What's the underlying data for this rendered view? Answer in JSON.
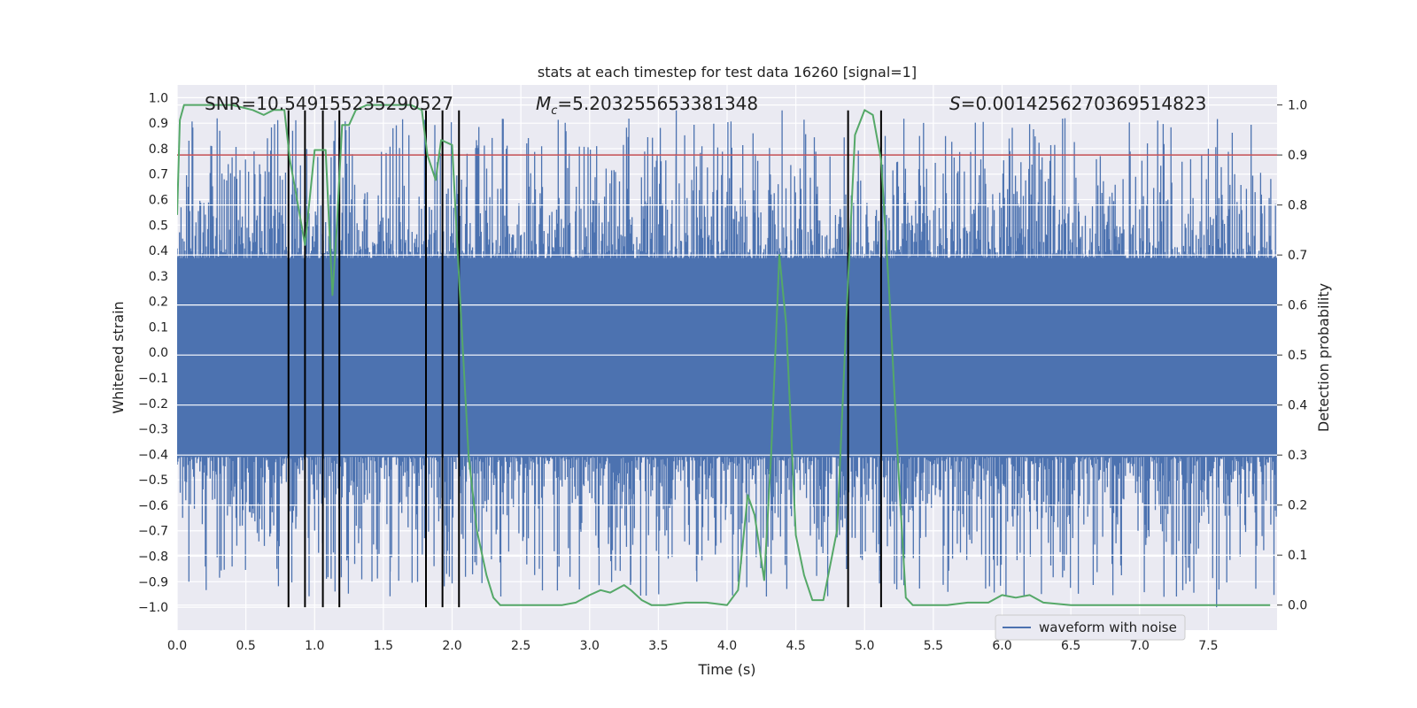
{
  "chart_data": {
    "type": "line",
    "title": "stats at each timestep for test data 16260 [signal=1]",
    "xlabel": "Time (s)",
    "ylabel": "Whitened strain",
    "y2label": "Detection probability",
    "xlim": [
      0.0,
      8.0
    ],
    "ylim": [
      -1.09,
      1.05
    ],
    "y2lim": [
      -0.05,
      1.04
    ],
    "grid": true,
    "x_ticks": [
      "0.0",
      "0.5",
      "1.0",
      "1.5",
      "2.0",
      "2.5",
      "3.0",
      "3.5",
      "4.0",
      "4.5",
      "5.0",
      "5.5",
      "6.0",
      "6.5",
      "7.0",
      "7.5"
    ],
    "y_ticks": [
      "1.0",
      "0.9",
      "0.8",
      "0.7",
      "0.6",
      "0.5",
      "0.4",
      "0.3",
      "0.2",
      "0.1",
      "0.0",
      "−0.1",
      "−0.2",
      "−0.3",
      "−0.4",
      "−0.5",
      "−0.6",
      "−0.7",
      "−0.8",
      "−0.9",
      "−1.0"
    ],
    "y2_ticks": [
      "1.0",
      "0.9",
      "0.8",
      "0.7",
      "0.6",
      "0.5",
      "0.4",
      "0.3",
      "0.2",
      "0.1",
      "0.0"
    ],
    "annotations": {
      "snr": "SNR=10.549155235290527",
      "mc_symbol": "M",
      "mc_sub": "c",
      "mc_value": "=5.203255653381348",
      "s_symbol": "S",
      "s_value": "=0.0014256270369514823"
    },
    "series": [
      {
        "name": "waveform with noise",
        "axis": "left",
        "color": "#4c72b0",
        "description": "dense whitened strain noise, core band about -0.41 to 0.37, spikes up to about 0.95 and down to -1.0",
        "envelope_core": [
          -0.41,
          0.37
        ],
        "spikes": [
          {
            "x": 0.31,
            "y": 0.87
          },
          {
            "x": 0.73,
            "y": -0.74
          },
          {
            "x": 1.14,
            "y": 0.83
          },
          {
            "x": 1.57,
            "y": 0.88
          },
          {
            "x": 1.55,
            "y": -0.86
          },
          {
            "x": 1.98,
            "y": -0.88
          },
          {
            "x": 3.3,
            "y": -0.9
          },
          {
            "x": 3.63,
            "y": 0.95
          },
          {
            "x": 3.78,
            "y": -0.9
          },
          {
            "x": 4.08,
            "y": -0.9
          },
          {
            "x": 4.4,
            "y": 0.95
          },
          {
            "x": 5.15,
            "y": 0.85
          },
          {
            "x": 5.4,
            "y": 0.85
          },
          {
            "x": 5.78,
            "y": -0.75
          },
          {
            "x": 6.2,
            "y": 0.84
          },
          {
            "x": 6.8,
            "y": -0.83
          },
          {
            "x": 7.5,
            "y": 0.8
          },
          {
            "x": 7.56,
            "y": -1.0
          }
        ]
      },
      {
        "name": "detection probability",
        "axis": "right",
        "color": "#55a868",
        "x": [
          0.0,
          0.02,
          0.05,
          0.1,
          0.2,
          0.4,
          0.55,
          0.63,
          0.7,
          0.78,
          0.82,
          0.86,
          0.93,
          1.0,
          1.08,
          1.13,
          1.16,
          1.2,
          1.25,
          1.3,
          1.38,
          1.45,
          1.5,
          1.58,
          1.7,
          1.78,
          1.82,
          1.88,
          1.92,
          2.0,
          2.07,
          2.12,
          2.18,
          2.25,
          2.3,
          2.35,
          2.42,
          2.5,
          2.6,
          2.7,
          2.8,
          2.9,
          3.0,
          3.08,
          3.15,
          3.25,
          3.3,
          3.38,
          3.45,
          3.55,
          3.7,
          3.85,
          4.0,
          4.08,
          4.15,
          4.2,
          4.27,
          4.32,
          4.38,
          4.43,
          4.5,
          4.56,
          4.62,
          4.7,
          4.8,
          4.88,
          4.93,
          5.0,
          5.06,
          5.12,
          5.18,
          5.25,
          5.3,
          5.35,
          5.45,
          5.6,
          5.75,
          5.9,
          6.0,
          6.1,
          6.2,
          6.3,
          6.5,
          6.8,
          7.2,
          7.6,
          7.95
        ],
        "values": [
          0.78,
          0.97,
          1.0,
          1.0,
          1.0,
          1.0,
          0.99,
          0.98,
          0.99,
          0.99,
          0.89,
          0.83,
          0.72,
          0.91,
          0.91,
          0.62,
          0.75,
          0.96,
          0.96,
          0.99,
          1.0,
          1.0,
          1.0,
          1.0,
          1.0,
          0.99,
          0.9,
          0.85,
          0.93,
          0.92,
          0.55,
          0.3,
          0.15,
          0.06,
          0.015,
          0.0,
          0.0,
          0.0,
          0.0,
          0.0,
          0.0,
          0.005,
          0.02,
          0.03,
          0.025,
          0.04,
          0.03,
          0.01,
          0.0,
          0.0,
          0.005,
          0.005,
          0.0,
          0.03,
          0.22,
          0.18,
          0.05,
          0.3,
          0.7,
          0.56,
          0.14,
          0.06,
          0.01,
          0.01,
          0.15,
          0.65,
          0.94,
          0.99,
          0.98,
          0.89,
          0.62,
          0.25,
          0.015,
          0.0,
          0.0,
          0.0,
          0.005,
          0.005,
          0.02,
          0.015,
          0.02,
          0.005,
          0.0,
          0.0,
          0.0,
          0.0,
          0.0
        ]
      }
    ],
    "threshold": {
      "axis": "right",
      "y": 0.9,
      "color": "#c44e52"
    },
    "vlines": [
      0.81,
      0.93,
      1.06,
      1.18,
      1.81,
      1.93,
      2.05,
      4.88,
      5.12
    ],
    "vline_range": [
      -1.0,
      0.95
    ],
    "legend": {
      "position": "lower-right",
      "label": "waveform with noise"
    }
  }
}
